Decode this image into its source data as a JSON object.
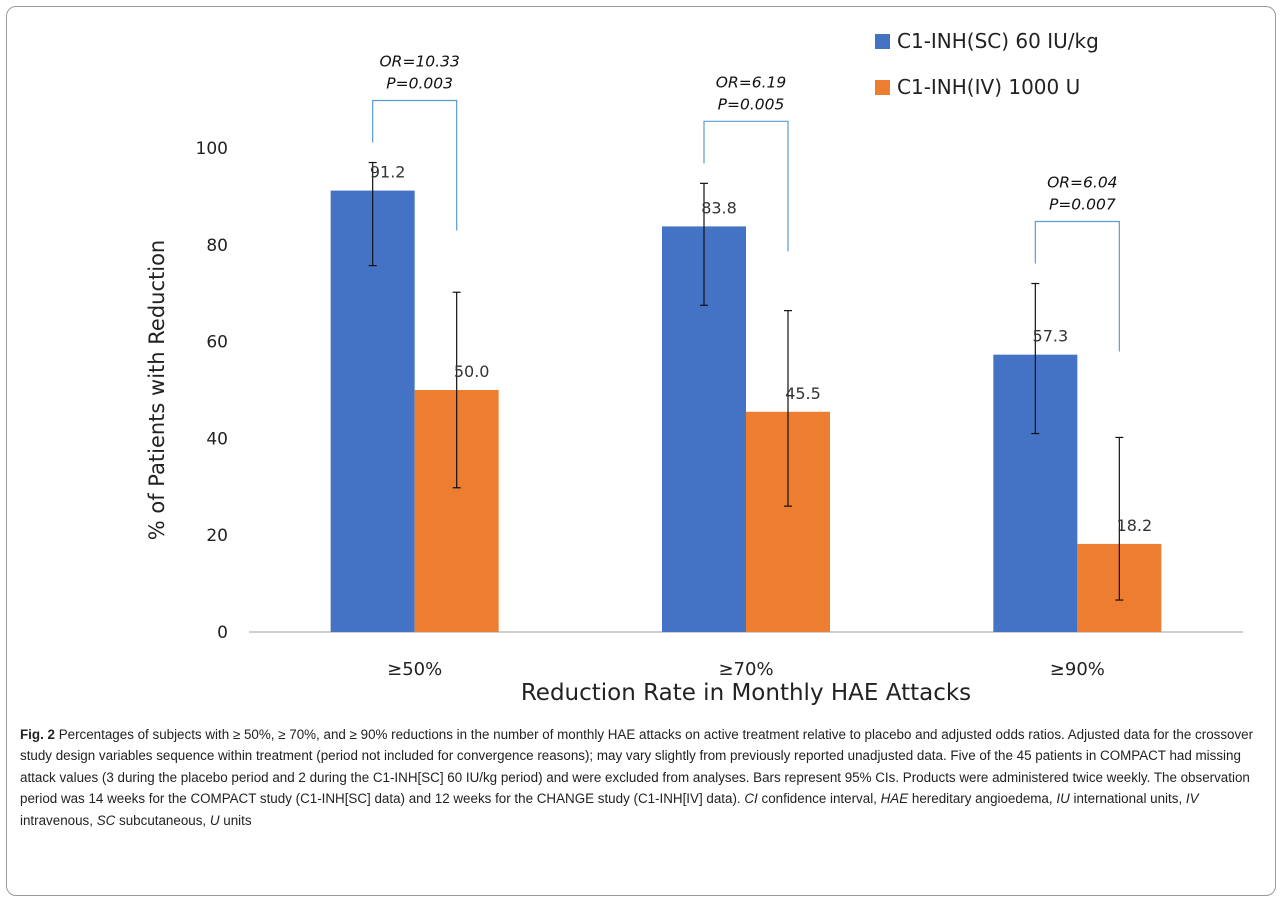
{
  "chart_data": {
    "type": "bar",
    "categories": [
      "≥50%",
      "≥70%",
      "≥90%"
    ],
    "series": [
      {
        "name": "C1-INH(SC) 60 IU/kg",
        "color": "#4472c4",
        "values": [
          91.2,
          83.8,
          57.3
        ],
        "value_labels": [
          "91.2",
          "83.8",
          "57.3"
        ],
        "ci_lower": [
          75.7,
          67.5,
          41.0
        ],
        "ci_upper": [
          97.0,
          92.7,
          72.0
        ]
      },
      {
        "name": "C1-INH(IV) 1000 U",
        "color": "#ed7d31",
        "values": [
          50.0,
          45.5,
          18.2
        ],
        "value_labels": [
          "50.0",
          "45.5",
          "18.2"
        ],
        "ci_lower": [
          29.8,
          26.0,
          6.6
        ],
        "ci_upper": [
          70.2,
          66.4,
          40.2
        ]
      }
    ],
    "annotations": [
      {
        "or": "OR=10.33",
        "p": "P=0.003"
      },
      {
        "or": "OR=6.19",
        "p": "P=0.005"
      },
      {
        "or": "OR=6.04",
        "p": "P=0.007"
      }
    ],
    "xlabel": "Reduction Rate in Monthly HAE Attacks",
    "ylabel": "% of Patients with Reduction",
    "ylim": [
      0,
      100
    ],
    "yticks": [
      0,
      20,
      40,
      60,
      80,
      100
    ],
    "grid": false,
    "legend_position": "top-right"
  },
  "caption": {
    "label": "Fig. 2",
    "text": "Percentages of subjects with ≥ 50%, ≥ 70%, and ≥ 90% reductions in the number of monthly HAE attacks on active treatment relative to placebo and adjusted odds ratios. Adjusted data for the crossover study design variables sequence within treatment (period not included for convergence reasons); may vary slightly from previously reported unadjusted data. Five of the 45 patients in COMPACT had missing attack values (3 during the placebo period and 2 during the C1-INH[SC] 60 IU/kg period) and were excluded from analyses. Bars represent 95% CIs. Products were administered twice weekly. The observation period was 14 weeks for the COMPACT study (C1-INH[SC] data) and 12 weeks for the CHANGE study (C1-INH[IV] data).",
    "abbreviations": [
      {
        "term": "CI",
        "definition": "confidence interval"
      },
      {
        "term": "HAE",
        "definition": "hereditary angioedema"
      },
      {
        "term": "IU",
        "definition": "international units"
      },
      {
        "term": "IV",
        "definition": "intravenous"
      },
      {
        "term": "SC",
        "definition": "subcutaneous"
      },
      {
        "term": "U",
        "definition": "units"
      }
    ]
  }
}
